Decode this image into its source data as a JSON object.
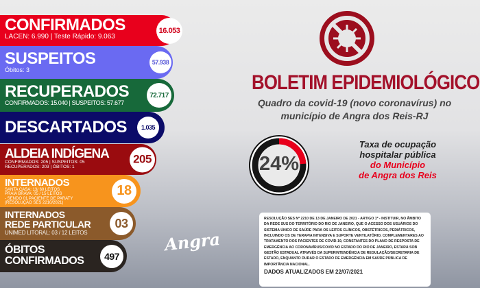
{
  "stats": {
    "confirmados": {
      "title": "CONFIRMADOS",
      "line": "LACEN: 6.990 | Teste Rápido: 9.063",
      "value": "16.053",
      "color": "#e8001c"
    },
    "suspeitos": {
      "title": "SUSPEITOS",
      "line": "Óbitos: 3",
      "value": "57.938",
      "color": "#6a6af2"
    },
    "recuperados": {
      "title": "RECUPERADOS",
      "line": "CONFIRMADOS: 15.040 | SUSPEITOS: 57.677",
      "value": "72.717",
      "color": "#17693a"
    },
    "descartados": {
      "title": "DESCARTADOS",
      "value": "1.035",
      "color": "#0b0b68"
    },
    "aldeia": {
      "title": "ALDEIA INDÍGENA",
      "line1": "CONFIRMADOS: 205 | SUSPEITOS: 05",
      "line2": "RECUPERADOS: 203 | ÓBITOS: 1",
      "value": "205",
      "color": "#9a0b0f"
    },
    "internados": {
      "title": "INTERNADOS",
      "line1": "SANTA CASA: 13/ 60 LEITOS",
      "line2": "PRAIA BRAVA: 05 / 15 LEITOS",
      "line3": "- SENDO 01 PACIENTE DE PARATY",
      "line4": "(RESOLUÇÃO SES 2210/2021)",
      "value": "18",
      "color": "#f7941d"
    },
    "particular": {
      "title1": "INTERNADOS",
      "title2": "REDE PARTICULAR",
      "line": "UNIMED LITORAL: 03 / 12 LEITOS",
      "value": "03",
      "color": "#8b5a2b"
    },
    "obitos": {
      "title1": "ÓBITOS",
      "title2": "CONFIRMADOS",
      "value": "497",
      "color": "#2a2420"
    }
  },
  "header": {
    "title": "BOLETIM EPIDEMIOLÓGICO",
    "subtitle1": "Quadro da covid-19 (novo coronavírus) no",
    "subtitle2": "município de Angra dos Reis-RJ",
    "icon": "no-virus-icon"
  },
  "occupancy": {
    "value": "24%",
    "percent": 24,
    "label1": "Taxa de ocupação",
    "label2": "hospitalar pública",
    "label3": "do Município",
    "label4": "de Angra dos Reis"
  },
  "logo": "Angra",
  "notice": {
    "text": "Resolução SES nº 2210 de 13 de janeiro de 2021 - Artigo 1º - Instituir, no âmbito da rede SUS do território do Rio de Janeiro, que o acesso dos usuários do Sistema Único de Saúde para os leitos clínicos, obstétricos, pediátricos, incluindo os de terapia intensiva e suporte ventilatório, complementares ao tratamento dos pacientes de Covid-19, constantes do Plano de Resposta de Emergência ao Coronavírus/Covid no Estado do Rio de Janeiro, estará sob gestão estadual através da Superintendência de Regulação/Secretaria de Estado, enquanto durar o estado de emergência em saúde pública de importância nacional.",
    "updated": "DADOS ATUALIZADOS EM 22/07/2021"
  }
}
